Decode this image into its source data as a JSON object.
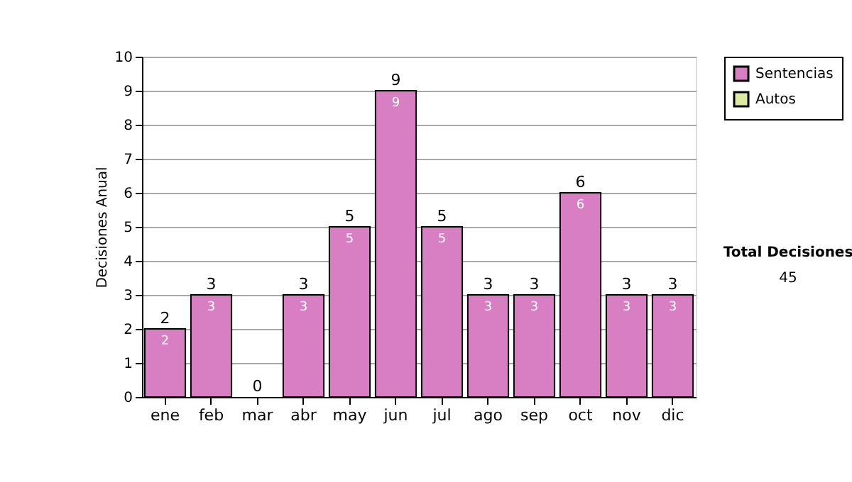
{
  "chart_data": {
    "type": "bar",
    "ylabel": "Decisiones Anual",
    "categories": [
      "ene",
      "feb",
      "mar",
      "abr",
      "may",
      "jun",
      "jul",
      "ago",
      "sep",
      "oct",
      "nov",
      "dic"
    ],
    "series": [
      {
        "name": "Sentencias",
        "color": "#d87fc4",
        "values": [
          2,
          3,
          0,
          3,
          5,
          9,
          5,
          3,
          3,
          6,
          3,
          3
        ],
        "value_labels": [
          "2",
          "3",
          null,
          "3",
          "5",
          "9",
          "5",
          "3",
          "3",
          "6",
          "3",
          "3"
        ]
      },
      {
        "name": "Autos",
        "color": "#dfe8a0",
        "values": [
          0,
          0,
          0,
          0,
          0,
          0,
          0,
          0,
          0,
          0,
          0,
          0
        ]
      }
    ],
    "stacked": true,
    "totals": [
      "2",
      "3",
      "0",
      "3",
      "5",
      "9",
      "5",
      "3",
      "3",
      "6",
      "3",
      "3"
    ],
    "ylim": [
      0,
      10
    ],
    "yticks": [
      0,
      1,
      2,
      3,
      4,
      5,
      6,
      7,
      8,
      9,
      10
    ],
    "grid": "y",
    "legend": "right",
    "annotations": [
      "Total Decisiones",
      "45"
    ]
  }
}
